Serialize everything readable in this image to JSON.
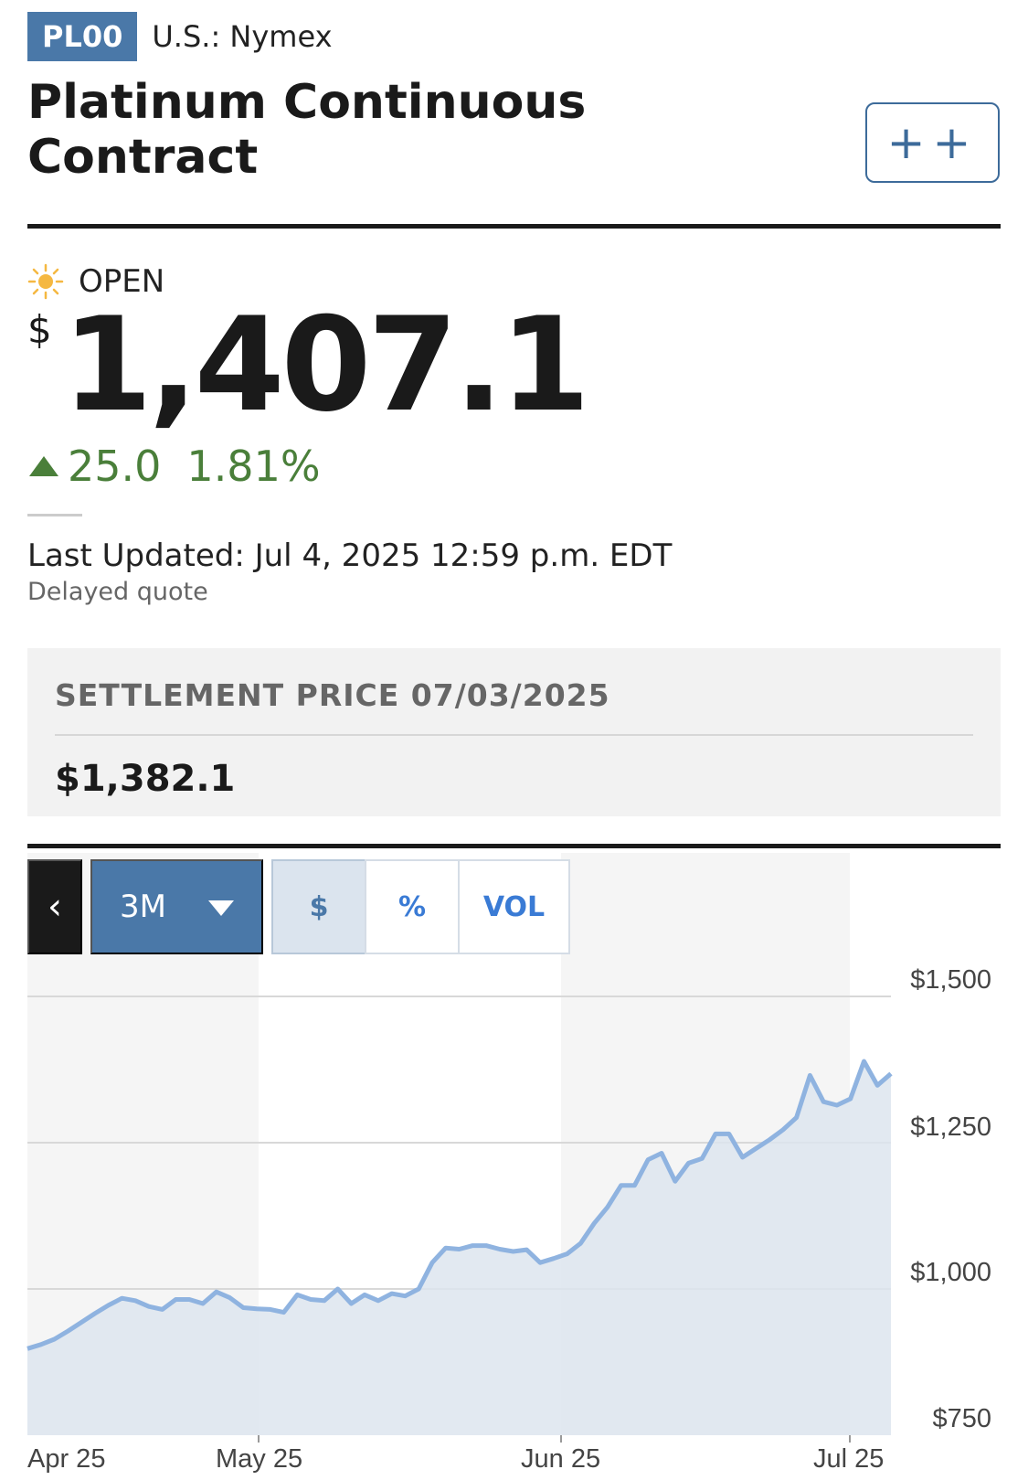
{
  "header": {
    "ticker": "PL00",
    "exchange": "U.S.: Nymex",
    "title_line1": "Platinum Continuous",
    "title_line2": "Contract",
    "watch_label": "++"
  },
  "quote": {
    "status": "OPEN",
    "currency": "$",
    "price": "1,407.1",
    "change": "25.0",
    "change_pct": "1.81%",
    "last_updated": "Last Updated: Jul 4, 2025 12:59 p.m. EDT",
    "delayed": "Delayed quote"
  },
  "settlement": {
    "label": "SETTLEMENT PRICE 07/03/2025",
    "value": "$1,382.1"
  },
  "chart_controls": {
    "back": "‹",
    "range": "3M",
    "toggles": [
      "$",
      "%",
      "VOL"
    ],
    "active_toggle": "$"
  },
  "colors": {
    "accent": "#4a78a8",
    "positive": "#4a7f3a",
    "line": "#8fb3e0",
    "fill": "#dde5ee"
  },
  "chart_data": {
    "type": "area",
    "title": "",
    "xlabel": "",
    "ylabel": "",
    "x_ticks": [
      "Apr 25",
      "May 25",
      "Jun 25",
      "Jul 25"
    ],
    "y_ticks": [
      "$1,500",
      "$1,250",
      "$1,000",
      "$750"
    ],
    "ylim": [
      750,
      1500
    ],
    "grid": true,
    "series": [
      {
        "values": [
          898,
          905,
          914,
          928,
          943,
          958,
          972,
          984,
          980,
          970,
          965,
          982,
          982,
          975,
          995,
          985,
          968,
          966,
          965,
          960,
          990,
          982,
          980,
          1000,
          975,
          990,
          980,
          992,
          988,
          1000,
          1045,
          1070,
          1068,
          1074,
          1074,
          1068,
          1064,
          1067,
          1045,
          1052,
          1060,
          1078,
          1112,
          1140,
          1177,
          1177,
          1221,
          1232,
          1184,
          1215,
          1223,
          1265,
          1265,
          1225,
          1240,
          1255,
          1272,
          1293,
          1365,
          1320,
          1314,
          1325,
          1389,
          1348,
          1368
        ]
      }
    ]
  }
}
